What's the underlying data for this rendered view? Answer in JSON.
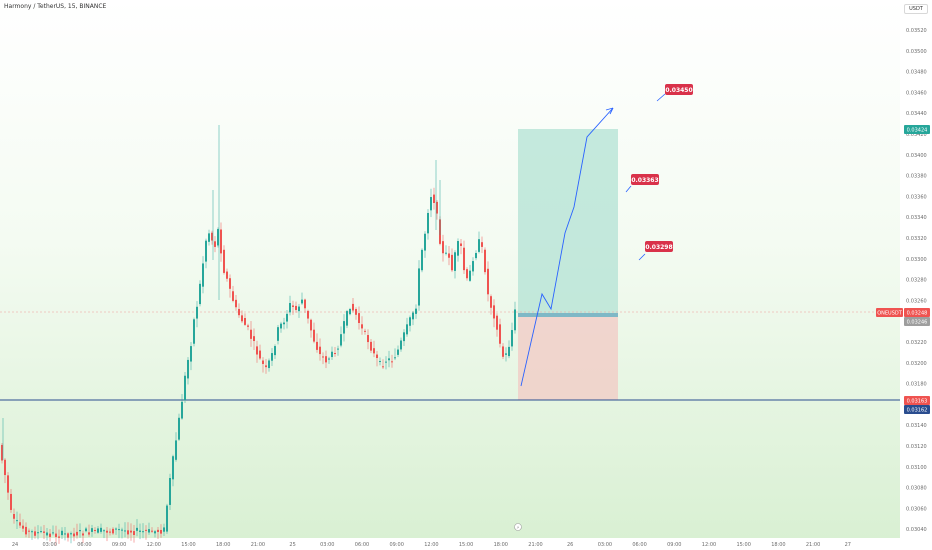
{
  "header": {
    "symbol_title": "Harmony / TetherUS, 15, BINANCE",
    "currency": "USDT"
  },
  "price_axis": {
    "ticks": [
      "0.03520",
      "0.03500",
      "0.03480",
      "0.03460",
      "0.03440",
      "0.03420",
      "0.03400",
      "0.03380",
      "0.03360",
      "0.03340",
      "0.03320",
      "0.03300",
      "0.03280",
      "0.03260",
      "0.03240",
      "0.03220",
      "0.03200",
      "0.03180",
      "0.03160",
      "0.03140",
      "0.03120",
      "0.03100",
      "0.03080",
      "0.03060",
      "0.03040"
    ],
    "badges": {
      "take_profit": "0.03424",
      "symbol_label": "ONEUSDT",
      "last_price": "0.03248",
      "entry": "0.03246",
      "support_line": "0.03163",
      "stop_loss": "0.03162"
    }
  },
  "time_axis": {
    "ticks": [
      "24",
      "03:00",
      "06:00",
      "09:00",
      "12:00",
      "15:00",
      "18:00",
      "21:00",
      "25",
      "03:00",
      "06:00",
      "09:00",
      "12:00",
      "15:00",
      "18:00",
      "21:00",
      "26",
      "03:00",
      "06:00",
      "09:00",
      "12:00",
      "15:00",
      "18:00",
      "21:00",
      "27"
    ]
  },
  "annotations": {
    "target_3": "0.03450",
    "target_2": "0.03363",
    "target_1": "0.03298"
  },
  "colors": {
    "up": "#26a69a",
    "down": "#ef5350",
    "support": "#2a4d8f",
    "projection": "#2962ff",
    "label_bg": "#d9324a"
  },
  "chart_data": {
    "type": "candlestick",
    "ylim": [
      0.03035,
      0.0353
    ],
    "long_position": {
      "entry": 0.03246,
      "take_profit": 0.03424,
      "stop_loss": 0.03162
    },
    "support_line": 0.03163,
    "projection_path": [
      [
        0,
        0.03177
      ],
      [
        10,
        0.03262
      ],
      [
        16,
        0.0324
      ],
      [
        26,
        0.03312
      ],
      [
        32,
        0.03342
      ],
      [
        40,
        0.0342
      ],
      [
        56,
        0.03445
      ]
    ]
  }
}
